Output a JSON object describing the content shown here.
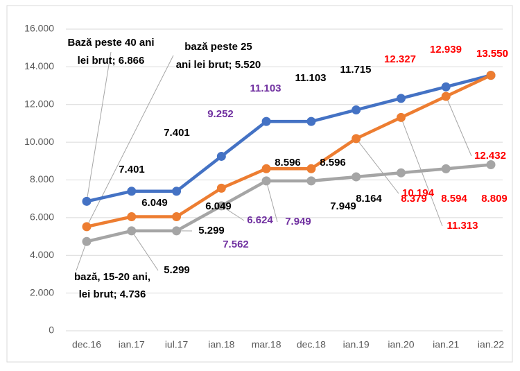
{
  "chart_data": {
    "type": "line",
    "categories": [
      "dec.16",
      "ian.17",
      "iul.17",
      "ian.18",
      "mar.18",
      "dec.18",
      "ian.19",
      "ian.20",
      "ian.21",
      "ian.22"
    ],
    "ylim": [
      0,
      16000
    ],
    "yticks": [
      0,
      {
        "value": 2000,
        "label": "2.000"
      },
      {
        "value": 4000,
        "label": "4.000"
      },
      {
        "value": 6000,
        "label": "6.000"
      },
      {
        "value": 8000,
        "label": "8.000"
      },
      {
        "value": 10000,
        "label": "10.000"
      },
      {
        "value": 12000,
        "label": "12.000"
      },
      {
        "value": 14000,
        "label": "14.000"
      },
      {
        "value": 16000,
        "label": "16.000"
      }
    ],
    "grid": true,
    "series": [
      {
        "name": "Bază peste 40 ani",
        "color": "#4472c4",
        "values": [
          6866,
          7401,
          7401,
          9252,
          11103,
          11103,
          11715,
          12327,
          12939,
          13550
        ],
        "value_labels": [
          "lei brut; 6.866",
          "7.401",
          "7.401",
          "9.252",
          "11.103",
          "11.103",
          "11.715",
          "12.327",
          "12.939",
          "13.550"
        ],
        "label_colors": [
          "#000000",
          "#000000",
          "#000000",
          "#7030a0",
          "#7030a0",
          "#000000",
          "#000000",
          "#ff0000",
          "#ff0000",
          "#ff0000"
        ]
      },
      {
        "name": "bază peste 25",
        "color": "#ed7d31",
        "values": [
          5520,
          6049,
          6049,
          7562,
          8596,
          8596,
          10194,
          11313,
          12432,
          13550
        ],
        "value_labels": [
          "ani lei brut; 5.520",
          "6.049",
          "6.049",
          "7.562",
          "8.596",
          "8.596",
          "10.194",
          "11.313",
          "12.432",
          "13.550"
        ],
        "label_colors": [
          "#000000",
          "#000000",
          "#000000",
          "#7030a0",
          "#000000",
          "#000000",
          "#ff0000",
          "#ff0000",
          "#ff0000",
          "#ff0000"
        ]
      },
      {
        "name": "bază, 15-20 ani,",
        "color": "#a5a5a5",
        "values": [
          4736,
          5299,
          5299,
          6624,
          7949,
          7949,
          8164,
          8379,
          8594,
          8809
        ],
        "value_labels": [
          "lei brut; 4.736",
          "5.299",
          "5.299",
          "6.624",
          "7.949",
          "7.949",
          "8.164",
          "8.379",
          "8.594",
          "8.809"
        ],
        "label_colors": [
          "#000000",
          "#000000",
          "#000000",
          "#7030a0",
          "#7030a0",
          "#000000",
          "#000000",
          "#ff0000",
          "#ff0000",
          "#ff0000"
        ]
      }
    ]
  }
}
